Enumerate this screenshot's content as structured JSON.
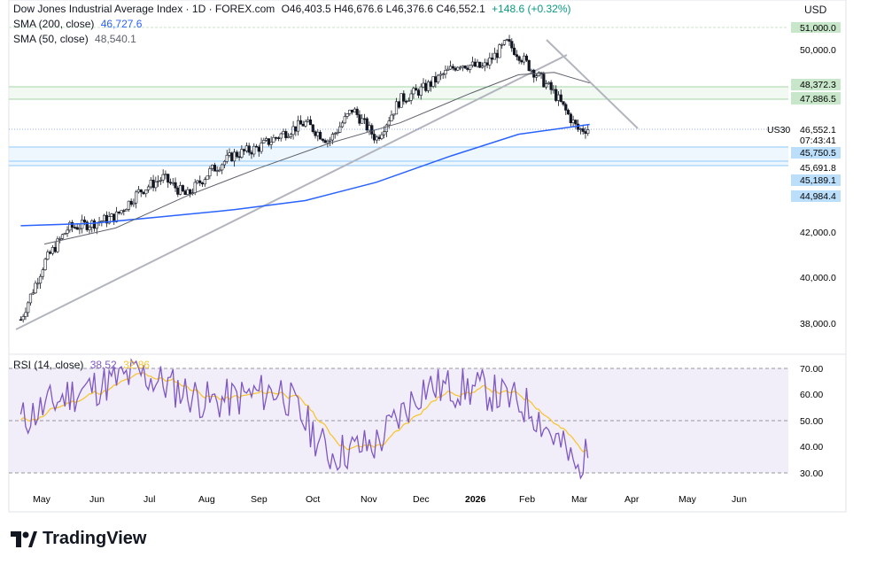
{
  "header": {
    "title": "Dow Jones Industrial Average Index · 1D · FOREX.com",
    "ohlc": "O46,403.5 H46,676.6 L46,376.6 C46,552.1",
    "change": "+148.6 (+0.32%)",
    "currency": "USD"
  },
  "indicators": {
    "sma200_label": "SMA (200, close)",
    "sma200_value": "46,727.6",
    "sma50_label": "SMA (50, close)",
    "sma50_value": "48,540.1",
    "rsi_label": "RSI (14, close)",
    "rsi_value": "38.52",
    "rsi_ma_value": "32.86"
  },
  "colors": {
    "candle": "#131722",
    "sma200": "#2962ff",
    "sma50": "#5d606b",
    "rsi": "#7e57c2",
    "rsi_ma": "#f7c634",
    "support_zone": "#bbdefb",
    "resistance_zone": "#c8e6c9",
    "trendline": "#b2b5be"
  },
  "price_axis": {
    "ticks": [
      "50,000.0",
      "42,000.0",
      "40,000.0",
      "38,000.0"
    ],
    "symbol": "US30",
    "last_price": "46,552.1",
    "countdown": "07:43:41"
  },
  "price_levels": [
    {
      "label": "51,000.0",
      "style": "green"
    },
    {
      "label": "48,372.3",
      "style": "green"
    },
    {
      "label": "47,886.5",
      "style": "green"
    },
    {
      "label": "45,750.5",
      "style": "blue"
    },
    {
      "label": "45,691.8",
      "style": "plain"
    },
    {
      "label": "45,189.1",
      "style": "blue"
    },
    {
      "label": "44,984.4",
      "style": "blue"
    }
  ],
  "rsi_axis": {
    "ticks": [
      "70.00",
      "60.00",
      "50.00",
      "40.00",
      "30.00"
    ]
  },
  "time_axis": {
    "labels": [
      "May",
      "Jun",
      "Jul",
      "Aug",
      "Sep",
      "Oct",
      "Nov",
      "Dec",
      "2026",
      "Feb",
      "Mar",
      "Apr",
      "May",
      "Jun"
    ]
  },
  "brand": "TradingView",
  "chart_data": {
    "type": "line",
    "title": "Dow Jones Industrial Average Index · 1D · FOREX.com",
    "series": [
      {
        "name": "Dow Jones Industrial Average Index",
        "x": [
          "2025-04-21",
          "2025-05-05",
          "2025-05-19",
          "2025-06-02",
          "2025-06-16",
          "2025-06-30",
          "2025-07-14",
          "2025-07-28",
          "2025-08-11",
          "2025-08-25",
          "2025-09-08",
          "2025-09-22",
          "2025-10-06",
          "2025-10-20",
          "2025-11-03",
          "2025-11-17",
          "2025-12-01",
          "2025-12-15",
          "2026-01-05",
          "2026-01-19",
          "2026-02-02",
          "2026-02-09",
          "2026-02-16",
          "2026-03-02",
          "2026-03-09",
          "2026-03-16",
          "2026-03-23"
        ],
        "values": [
          38200,
          40700,
          42200,
          42400,
          42700,
          43800,
          44400,
          43600,
          44700,
          45400,
          45700,
          46300,
          46800,
          46000,
          47400,
          46100,
          47800,
          48300,
          49400,
          49200,
          50300,
          49800,
          49200,
          48100,
          47300,
          46500,
          46552
        ]
      },
      {
        "name": "SMA (200, close)",
        "x": [
          "2025-04-21",
          "2025-06-02",
          "2025-07-14",
          "2025-08-25",
          "2025-10-06",
          "2025-11-17",
          "2025-12-29",
          "2026-02-09",
          "2026-03-23"
        ],
        "values": [
          42300,
          42400,
          42700,
          43000,
          43400,
          44200,
          45300,
          46300,
          46728
        ]
      },
      {
        "name": "SMA (50, close)",
        "x": [
          "2025-05-05",
          "2025-06-16",
          "2025-07-28",
          "2025-09-08",
          "2025-10-20",
          "2025-12-01",
          "2026-01-12",
          "2026-02-09",
          "2026-03-02",
          "2026-03-23"
        ],
        "values": [
          41500,
          42200,
          43600,
          44800,
          45900,
          46800,
          48100,
          48900,
          49000,
          48540
        ]
      }
    ],
    "rsi": {
      "name": "RSI (14, close)",
      "x": [
        "2025-04-21",
        "2025-05-19",
        "2025-06-30",
        "2025-08-11",
        "2025-09-22",
        "2025-10-20",
        "2025-11-17",
        "2025-12-15",
        "2026-01-19",
        "2026-02-16",
        "2026-03-09",
        "2026-03-16",
        "2026-03-23"
      ],
      "values": [
        50,
        60,
        68,
        57,
        62,
        37,
        41,
        63,
        62,
        55,
        38,
        30,
        38.52
      ],
      "ylim": [
        25,
        75
      ]
    },
    "price_levels": [
      51000.0,
      48372.3,
      47886.5,
      45750.5,
      45691.8,
      45189.1,
      44984.4
    ],
    "ylim": [
      37400,
      51400
    ]
  }
}
